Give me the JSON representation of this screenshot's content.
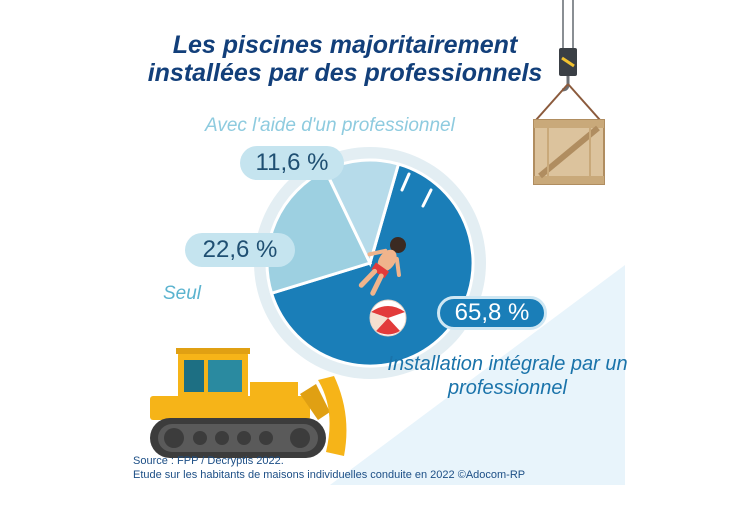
{
  "title": {
    "line1": "Les piscines majoritairement",
    "line2": "installées par des professionnels"
  },
  "source": {
    "line1": "Source :  FPP / Decryptis 2022.",
    "line2": "Etude sur les habitants de maisons individuelles conduite en 2022 ©Adocom-RP"
  },
  "colors": {
    "title": "#123f7a",
    "integral": "#1a7eb8",
    "seul": "#9dd0e1",
    "aide": "#b6dbea",
    "ring": "#e3eef3",
    "background_panel": "#e8f4fb"
  },
  "chart_data": {
    "type": "pie",
    "style": "donut-ring",
    "unit": "%",
    "slices": [
      {
        "name": "Installation intégrale par un professionnel",
        "value": 65.8,
        "label": "65,8 %",
        "color": "#1a7eb8"
      },
      {
        "name": "Seul",
        "value": 22.6,
        "label": "22,6 %",
        "color": "#9dd0e1"
      },
      {
        "name": "Avec l'aide d'un professionnel",
        "value": 11.6,
        "label": "11,6 %",
        "color": "#b6dbea"
      }
    ],
    "labels": {
      "integral": "Installation intégrale par un professionnel",
      "seul": "Seul",
      "aide": "Avec l'aide d'un professionnel"
    }
  },
  "illustrations": [
    "crane-crate",
    "bulldozer",
    "swimmer",
    "beach-ball",
    "pool-ladder"
  ]
}
